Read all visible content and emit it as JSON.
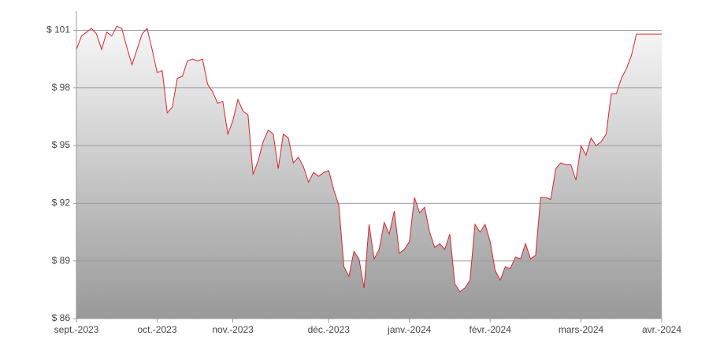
{
  "chart_data": {
    "type": "area",
    "categories": [
      "sept.-2023",
      null,
      null,
      null,
      null,
      null,
      null,
      null,
      null,
      null,
      null,
      null,
      null,
      null,
      null,
      null,
      "oct.-2023",
      null,
      null,
      null,
      null,
      null,
      null,
      null,
      null,
      null,
      null,
      null,
      null,
      null,
      null,
      "nov.-2023",
      null,
      null,
      null,
      null,
      null,
      null,
      null,
      null,
      null,
      null,
      null,
      null,
      null,
      null,
      null,
      null,
      null,
      null,
      "déc.-2023",
      null,
      null,
      null,
      null,
      null,
      null,
      null,
      null,
      null,
      null,
      null,
      null,
      null,
      null,
      null,
      "janv.-2024",
      null,
      null,
      null,
      null,
      null,
      null,
      null,
      null,
      null,
      null,
      null,
      null,
      null,
      null,
      null,
      "févr.-2024",
      null,
      null,
      null,
      null,
      null,
      null,
      null,
      null,
      null,
      null,
      null,
      null,
      null,
      null,
      null,
      null,
      null,
      "mars-2024",
      null,
      null,
      null,
      null,
      null,
      null,
      null,
      null,
      null,
      null,
      null,
      null,
      null,
      null,
      null,
      "avr.-2024"
    ],
    "values": [
      100.0,
      100.7,
      100.9,
      101.1,
      100.8,
      100.0,
      100.9,
      100.7,
      101.2,
      101.1,
      100.1,
      99.2,
      100.0,
      100.8,
      101.1,
      100.0,
      98.8,
      98.9,
      96.7,
      97.0,
      98.5,
      98.6,
      99.4,
      99.5,
      99.4,
      99.5,
      98.2,
      97.8,
      97.2,
      97.3,
      95.6,
      96.3,
      97.4,
      96.8,
      96.6,
      93.5,
      94.2,
      95.2,
      95.8,
      95.6,
      93.8,
      95.6,
      95.4,
      94.1,
      94.4,
      93.9,
      93.1,
      93.6,
      93.4,
      93.6,
      93.7,
      92.7,
      91.9,
      88.7,
      88.2,
      89.5,
      89.1,
      87.6,
      90.9,
      89.1,
      89.6,
      91.0,
      90.4,
      91.6,
      89.4,
      89.6,
      90.0,
      92.3,
      91.5,
      91.8,
      90.5,
      89.7,
      89.9,
      89.6,
      90.4,
      87.8,
      87.4,
      87.6,
      88.0,
      90.9,
      90.5,
      90.9,
      90.0,
      88.5,
      88.0,
      88.7,
      88.6,
      89.2,
      89.1,
      89.9,
      89.1,
      89.3,
      92.3,
      92.3,
      92.2,
      93.8,
      94.1,
      94.0,
      94.0,
      93.2,
      95.0,
      94.5,
      95.4,
      95.0,
      95.2,
      95.6,
      97.7,
      97.7,
      98.5,
      99.0,
      99.7,
      100.8,
      100.8,
      100.8,
      100.8,
      100.8,
      100.8
    ],
    "color": "#d9232e",
    "ylim": [
      86,
      102
    ],
    "yticks": [
      {
        "value": 86,
        "label": "$ 86"
      },
      {
        "value": 89,
        "label": "$ 89"
      },
      {
        "value": 92,
        "label": "$ 92"
      },
      {
        "value": 95,
        "label": "$ 95"
      },
      {
        "value": 98,
        "label": "$ 98"
      },
      {
        "value": 101,
        "label": "$ 101"
      }
    ],
    "grid": true
  }
}
